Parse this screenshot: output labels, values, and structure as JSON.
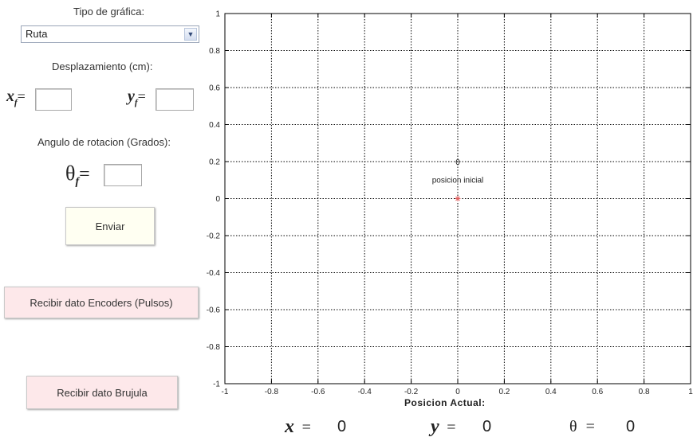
{
  "left_panel": {
    "chart_type_label": "Tipo de gráfica:",
    "chart_type_selected": "Ruta",
    "displacement_label": "Desplazamiento (cm):",
    "xf_symbol": "x",
    "xf_sub": "f",
    "yf_symbol": "y",
    "yf_sub": "f",
    "eq": "=",
    "xf_value": "",
    "yf_value": "",
    "angle_label": "Angulo de rotacion (Grados):",
    "theta_symbol": "θ",
    "theta_sub": "f",
    "theta_value": "",
    "send_button": "Enviar",
    "encoders_button": "Recibir dato Encoders (Pulsos)",
    "compass_button": "Recibir dato Brujula"
  },
  "status": {
    "title": "Posicion Actual:",
    "x_symbol": "x",
    "x_eq": "=",
    "x_value": "0",
    "y_symbol": "y",
    "y_eq": "=",
    "y_value": "0",
    "theta_symbol": "θ",
    "theta_eq": "=",
    "theta_value": "0"
  },
  "colors": {
    "send_button_bg": "#fffff2",
    "receive_button_bg": "#fde8ea",
    "marker": "#e06060",
    "grid": "#000000"
  },
  "chart_data": {
    "type": "scatter",
    "xlim": [
      -1,
      1
    ],
    "ylim": [
      -1,
      1
    ],
    "grid": true,
    "grid_style": "dotted",
    "x_ticks": [
      -1,
      -0.8,
      -0.6,
      -0.4,
      -0.2,
      0,
      0.2,
      0.4,
      0.6,
      0.8,
      1
    ],
    "y_ticks": [
      -1,
      -0.8,
      -0.6,
      -0.4,
      -0.2,
      0,
      0.2,
      0.4,
      0.6,
      0.8,
      1
    ],
    "x_tick_labels": [
      "-1",
      "-0.8",
      "-0.6",
      "-0.4",
      "-0.2",
      "0",
      "0.2",
      "0.4",
      "0.6",
      "0.8",
      "1"
    ],
    "y_tick_labels": [
      "-1",
      "-0.8",
      "-0.6",
      "-0.4",
      "-0.2",
      "0",
      "0.2",
      "0.4",
      "0.6",
      "0.8",
      "1"
    ],
    "points": [
      {
        "x": 0,
        "y": 0,
        "label": "posicion inicial",
        "marker": "*"
      }
    ],
    "annotations": [
      {
        "x": 0,
        "y": 0.2,
        "text": "0"
      }
    ]
  }
}
